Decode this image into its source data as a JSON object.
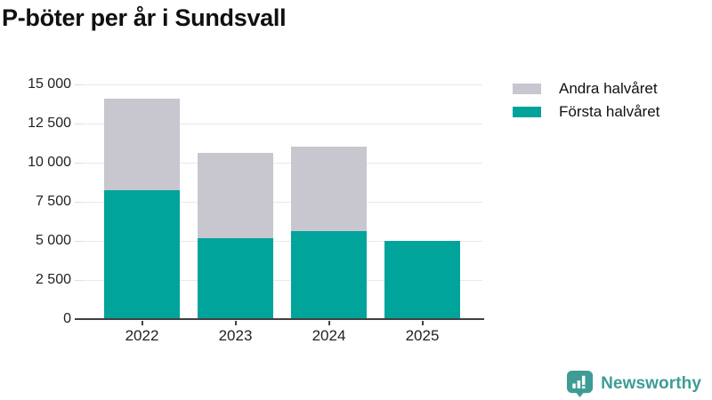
{
  "title": "P-böter per år i Sundsvall",
  "legend": {
    "items": [
      {
        "label": "Andra halvåret",
        "color": "#c8c6ce"
      },
      {
        "label": "Första halvåret",
        "color": "#00a49b"
      }
    ]
  },
  "footer": {
    "brand": "Newsworthy",
    "logo_icon": "newsworthy-speech-bubble-bar-chart-icon",
    "brand_color": "#3e9c95"
  },
  "colors": {
    "first_half": "#00a49b",
    "second_half": "#c8c6ce",
    "grid": "#e9e8ea",
    "axis": "#404040",
    "tick_text": "#222222",
    "title_text": "#101010"
  },
  "chart_data": {
    "type": "bar",
    "stacked": true,
    "title": "P-böter per år i Sundsvall",
    "xlabel": "",
    "ylabel": "",
    "categories": [
      "2022",
      "2023",
      "2024",
      "2025"
    ],
    "series": [
      {
        "name": "Första halvåret",
        "color": "#00a49b",
        "values": [
          8250,
          5150,
          5650,
          5000
        ]
      },
      {
        "name": "Andra halvåret",
        "color": "#c8c6ce",
        "values": [
          5850,
          5450,
          5350,
          0
        ]
      }
    ],
    "totals": [
      14100,
      10600,
      11000,
      5000
    ],
    "ylim": [
      0,
      15000
    ],
    "yticks": [
      {
        "value": 0,
        "label": "0"
      },
      {
        "value": 2500,
        "label": "2 500"
      },
      {
        "value": 5000,
        "label": "5 000"
      },
      {
        "value": 7500,
        "label": "7 500"
      },
      {
        "value": 10000,
        "label": "10 000"
      },
      {
        "value": 12500,
        "label": "12 500"
      },
      {
        "value": 15000,
        "label": "15 000"
      }
    ],
    "grid": true,
    "legend_position": "top-right"
  }
}
